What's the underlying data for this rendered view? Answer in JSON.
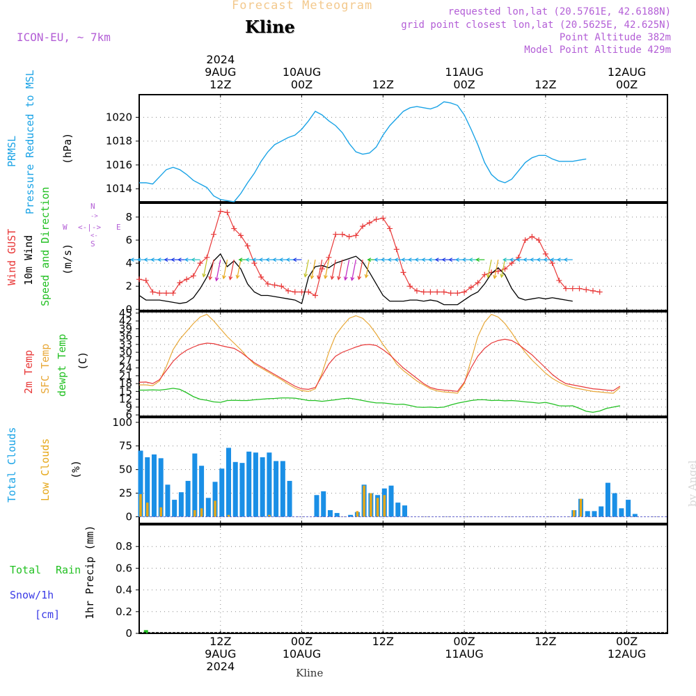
{
  "header": {
    "suptitle": "Forecast Meteogram",
    "title": "Kline",
    "model": "ICON-EU, ~ 7km",
    "requested": "requested lon,lat (20.5761E, 42.6188N)",
    "gridpoint": "grid point closest lon,lat (20.5625E, 42.625N)",
    "point_alt": "Point Altitude 382m",
    "model_alt": "Model Point Altitude 429m"
  },
  "footer": {
    "station": "Kline",
    "watermark": "by Angel"
  },
  "time_axis": {
    "top": [
      {
        "hour": 12,
        "lines": [
          "2024",
          "9AUG",
          "12Z"
        ]
      },
      {
        "hour": 24,
        "lines": [
          "10AUG",
          "00Z"
        ]
      },
      {
        "hour": 36,
        "lines": [
          "12Z"
        ]
      },
      {
        "hour": 48,
        "lines": [
          "11AUG",
          "00Z"
        ]
      },
      {
        "hour": 60,
        "lines": [
          "12Z"
        ]
      },
      {
        "hour": 72,
        "lines": [
          "12AUG",
          "00Z"
        ]
      }
    ],
    "bottom": [
      {
        "hour": 12,
        "lines": [
          "12Z",
          "9AUG",
          "2024"
        ]
      },
      {
        "hour": 24,
        "lines": [
          "00Z",
          "10AUG"
        ]
      },
      {
        "hour": 36,
        "lines": [
          "12Z"
        ]
      },
      {
        "hour": 48,
        "lines": [
          "00Z",
          "11AUG"
        ]
      },
      {
        "hour": 60,
        "lines": [
          "12Z"
        ]
      },
      {
        "hour": 72,
        "lines": [
          "00Z",
          "12AUG"
        ]
      }
    ]
  },
  "colors": {
    "pressure": "#1aa3e6",
    "gust": "#e83838",
    "wind": "#000000",
    "temp2m": "#e83838",
    "sfc": "#e8a838",
    "dewpt": "#22c022",
    "total_clouds": "#1a8fe6",
    "low_clouds": "#e6a81a",
    "rain": "#22c022",
    "snow": "#3a3ae6",
    "header": "#b35ed6",
    "compass": "#b35ed6"
  },
  "labels": {
    "pressure": [
      "PRMSL",
      "Pressure Reduced to MSL"
    ],
    "pressure_unit": "(hPa)",
    "wind": [
      "Wind GUST",
      "10m Wind",
      "Speed and Direction"
    ],
    "wind_unit": "(m/s)",
    "compass": {
      "w": "W",
      "e": "E",
      "n": "N",
      "s": "S",
      "h_arrow": "<-|->",
      "v_top": "->",
      "v_bottom": "<-"
    },
    "temp": [
      "2m Temp",
      "SFC Temp",
      "dewpt Temp"
    ],
    "temp_unit": "(C)",
    "clouds": [
      "Total Clouds",
      "Low Clouds"
    ],
    "clouds_unit": "(%)",
    "precip_left": [
      "Total",
      "Rain",
      "Snow/1h",
      "[cm]"
    ],
    "precip_unit": "1hr Precip (mm)"
  },
  "chart_data": [
    {
      "type": "line",
      "name": "pressure",
      "title": "PRMSL Pressure Reduced to MSL",
      "ylabel": "(hPa)",
      "x_start_hour": 0,
      "x_step_hours": 1,
      "xlim": [
        0,
        78
      ],
      "ylim": [
        1012.9,
        1021.9
      ],
      "yticks": [
        1014,
        1016,
        1018,
        1020
      ],
      "values": [
        1014.5,
        1014.5,
        1014.4,
        1015.0,
        1015.6,
        1015.8,
        1015.6,
        1015.2,
        1014.7,
        1014.4,
        1014.1,
        1013.4,
        1013.1,
        1013.0,
        1012.9,
        1013.6,
        1014.5,
        1015.3,
        1016.3,
        1017.1,
        1017.7,
        1018.0,
        1018.3,
        1018.5,
        1019.0,
        1019.7,
        1020.5,
        1020.2,
        1019.7,
        1019.3,
        1018.7,
        1017.8,
        1017.1,
        1016.9,
        1017.0,
        1017.5,
        1018.5,
        1019.3,
        1019.9,
        1020.5,
        1020.8,
        1020.9,
        1020.8,
        1020.7,
        1020.9,
        1021.3,
        1021.2,
        1021.0,
        1020.2,
        1019.0,
        1017.7,
        1016.2,
        1015.2,
        1014.7,
        1014.5,
        1014.8,
        1015.5,
        1016.2,
        1016.6,
        1016.8,
        1016.8,
        1016.5,
        1016.3,
        1016.3,
        1016.3,
        1016.4,
        1016.5
      ]
    },
    {
      "type": "line",
      "name": "wind",
      "ylabel": "(m/s)",
      "xlim": [
        0,
        78
      ],
      "ylim": [
        -0.1,
        9.2
      ],
      "yticks": [
        0,
        2,
        4,
        6,
        8
      ],
      "x_start_hour": 0,
      "x_step_hours": 1,
      "series": [
        {
          "name": "Wind GUST",
          "values": [
            2.6,
            2.5,
            1.5,
            1.4,
            1.4,
            1.4,
            2.3,
            2.6,
            2.9,
            4.0,
            4.5,
            6.5,
            8.5,
            8.4,
            7.0,
            6.4,
            5.5,
            4.0,
            2.8,
            2.2,
            2.1,
            2.0,
            1.6,
            1.5,
            1.5,
            1.5,
            1.2,
            3.5,
            4.5,
            6.5,
            6.5,
            6.3,
            6.4,
            7.2,
            7.5,
            7.8,
            7.9,
            7.0,
            5.2,
            3.2,
            2.0,
            1.6,
            1.5,
            1.5,
            1.5,
            1.5,
            1.4,
            1.4,
            1.5,
            1.9,
            2.3,
            3.0,
            3.2,
            3.3,
            3.5,
            4.0,
            4.5,
            6.0,
            6.3,
            6.0,
            4.8,
            4.0,
            2.5,
            1.8,
            1.8,
            1.8,
            1.7,
            1.6,
            1.5
          ]
        },
        {
          "name": "10m Wind",
          "values": [
            1.2,
            0.8,
            0.8,
            0.8,
            0.7,
            0.6,
            0.5,
            0.6,
            1.0,
            1.8,
            2.8,
            4.2,
            4.8,
            3.7,
            4.2,
            3.5,
            2.2,
            1.5,
            1.2,
            1.2,
            1.1,
            1.0,
            0.9,
            0.8,
            0.5,
            2.8,
            3.7,
            3.8,
            3.6,
            4.0,
            4.2,
            4.4,
            4.6,
            4.1,
            3.2,
            2.2,
            1.2,
            0.7,
            0.7,
            0.7,
            0.8,
            0.8,
            0.7,
            0.8,
            0.7,
            0.4,
            0.4,
            0.4,
            0.8,
            1.2,
            1.5,
            2.2,
            3.1,
            3.6,
            3.0,
            1.8,
            1.0,
            0.8,
            0.9,
            1.0,
            0.9,
            1.0,
            0.9,
            0.8,
            0.7
          ]
        }
      ]
    },
    {
      "type": "line",
      "name": "temperature",
      "ylabel": "(C)",
      "xlim": [
        0,
        78
      ],
      "ylim": [
        5.5,
        45.5
      ],
      "yticks": [
        6,
        9,
        12,
        15,
        18,
        21,
        24,
        27,
        30,
        33,
        36,
        39,
        42,
        45
      ],
      "x_start_hour": 0,
      "x_step_hours": 1,
      "series": [
        {
          "name": "2m Temp",
          "values": [
            18.5,
            18.6,
            18.0,
            19.5,
            23.0,
            26.5,
            29.0,
            30.8,
            32.0,
            33.0,
            33.5,
            33.3,
            32.6,
            32.0,
            31.5,
            30.0,
            28.0,
            26.0,
            24.5,
            23.0,
            21.5,
            20.0,
            18.5,
            17.0,
            16.0,
            15.8,
            16.5,
            21.0,
            25.5,
            28.5,
            30.0,
            31.0,
            32.0,
            32.8,
            33.0,
            32.6,
            31.0,
            29.0,
            26.5,
            24.0,
            22.0,
            20.0,
            18.0,
            16.5,
            15.8,
            15.5,
            15.3,
            15.0,
            18.5,
            24.0,
            28.5,
            31.5,
            33.5,
            34.5,
            35.0,
            34.5,
            33.0,
            31.0,
            29.0,
            26.5,
            24.0,
            21.5,
            19.5,
            18.0,
            17.5,
            17.0,
            16.5,
            16.0,
            15.8,
            15.5,
            15.3,
            17.0
          ]
        },
        {
          "name": "SFC Temp",
          "values": [
            17.5,
            17.5,
            17.2,
            19.0,
            24.5,
            31.0,
            35.0,
            38.0,
            41.0,
            43.5,
            44.5,
            42.0,
            39.0,
            36.0,
            33.5,
            31.0,
            28.0,
            25.5,
            24.0,
            22.5,
            21.0,
            19.5,
            17.8,
            16.3,
            15.3,
            15.0,
            16.0,
            22.0,
            30.0,
            36.5,
            40.0,
            43.0,
            44.0,
            43.0,
            40.5,
            37.0,
            33.0,
            29.5,
            25.5,
            23.0,
            21.0,
            19.0,
            17.5,
            16.0,
            15.2,
            14.8,
            14.6,
            14.3,
            18.0,
            27.0,
            36.0,
            41.5,
            44.5,
            43.5,
            41.0,
            37.5,
            33.5,
            30.0,
            27.0,
            24.5,
            22.0,
            20.0,
            18.5,
            17.3,
            16.5,
            16.0,
            15.5,
            15.0,
            14.8,
            14.5,
            14.3,
            16.5
          ]
        },
        {
          "name": "dewpt Temp",
          "values": [
            15.5,
            15.5,
            15.6,
            15.5,
            15.8,
            16.2,
            15.8,
            14.5,
            13.0,
            12.0,
            11.6,
            11.0,
            10.8,
            11.5,
            11.6,
            11.5,
            11.5,
            11.8,
            12.0,
            12.2,
            12.3,
            12.5,
            12.5,
            12.4,
            12.0,
            11.5,
            11.5,
            11.2,
            11.5,
            11.8,
            12.2,
            12.4,
            12.0,
            11.5,
            11.0,
            10.6,
            10.6,
            10.3,
            10.0,
            10.1,
            9.6,
            9.0,
            8.9,
            9.0,
            8.8,
            9.0,
            9.8,
            10.5,
            11.0,
            11.5,
            11.8,
            11.8,
            11.5,
            11.6,
            11.4,
            11.5,
            11.3,
            11.0,
            10.8,
            10.5,
            10.8,
            10.2,
            9.5,
            9.4,
            9.5,
            8.5,
            7.4,
            7.0,
            7.5,
            8.5,
            9.0,
            9.5
          ]
        }
      ]
    },
    {
      "type": "bar",
      "name": "clouds",
      "ylabel": "(%)",
      "xlim": [
        0,
        78
      ],
      "ylim": [
        -7,
        105
      ],
      "yticks": [
        0,
        25,
        50,
        75,
        100
      ],
      "x_start_hour": 0,
      "x_step_hours": 1,
      "series": [
        {
          "name": "Total Clouds",
          "values": [
            70,
            63,
            66,
            62,
            34,
            18,
            26,
            38,
            67,
            54,
            20,
            37,
            51,
            73,
            58,
            57,
            69,
            68,
            63,
            68,
            59,
            59,
            38,
            0,
            0,
            0,
            23,
            27,
            7,
            4,
            0,
            2,
            5,
            34,
            25,
            23,
            30,
            33,
            15,
            12,
            0,
            0,
            0,
            0,
            0,
            0,
            0,
            0,
            0,
            0,
            0,
            0,
            0,
            0,
            0,
            0,
            0,
            0,
            0,
            0,
            0,
            0,
            0,
            0,
            7,
            19,
            6,
            6,
            11,
            36,
            25,
            9,
            18,
            3,
            0,
            0,
            0,
            0,
            0
          ]
        },
        {
          "name": "Low Clouds",
          "values": [
            24,
            15,
            0,
            10,
            0,
            0,
            0,
            0,
            7,
            9,
            0,
            17,
            0,
            2,
            0,
            0,
            0,
            0,
            0,
            2,
            0,
            0,
            0,
            0,
            0,
            0,
            0,
            0,
            0,
            0,
            0,
            0,
            6,
            33,
            25,
            20,
            23,
            0,
            0,
            0,
            0,
            0,
            0,
            0,
            0,
            0,
            0,
            0,
            0,
            0,
            0,
            0,
            0,
            0,
            0,
            0,
            0,
            0,
            0,
            0,
            0,
            0,
            0,
            0,
            7,
            19,
            0,
            0,
            0,
            0,
            0,
            0,
            0,
            0,
            0,
            0,
            0,
            0,
            0
          ]
        }
      ]
    },
    {
      "type": "bar",
      "name": "precip",
      "ylabel": "1hr Precip (mm)",
      "xlim": [
        0,
        78
      ],
      "ylim": [
        0,
        1.0
      ],
      "yticks": [
        0,
        0.2,
        0.4,
        0.6,
        0.8
      ],
      "ytick_labels": [
        "0",
        "0.2",
        "0.4",
        "0.6",
        "0.8"
      ],
      "x_start_hour": 0,
      "x_step_hours": 1,
      "series": [
        {
          "name": "Total Rain",
          "values": [
            0,
            0.03,
            0,
            0,
            0,
            0,
            0,
            0,
            0,
            0,
            0,
            0,
            0,
            0,
            0,
            0,
            0,
            0,
            0,
            0,
            0,
            0,
            0,
            0,
            0,
            0,
            0,
            0,
            0,
            0,
            0,
            0,
            0,
            0,
            0,
            0,
            0,
            0,
            0,
            0,
            0,
            0,
            0,
            0,
            0,
            0,
            0,
            0,
            0,
            0,
            0,
            0,
            0,
            0,
            0,
            0,
            0,
            0,
            0,
            0,
            0,
            0,
            0,
            0,
            0,
            0,
            0,
            0,
            0,
            0,
            0,
            0,
            0,
            0,
            0,
            0,
            0,
            0
          ]
        },
        {
          "name": "Snow/1h",
          "values": []
        }
      ]
    }
  ]
}
